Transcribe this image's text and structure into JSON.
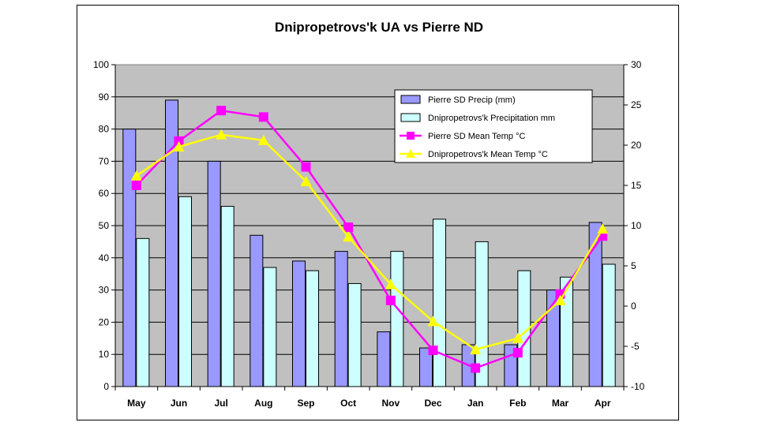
{
  "chart_data": {
    "type": "bar",
    "title": "Dnipropetrovs'k UA vs Pierre ND",
    "categories": [
      "May",
      "Jun",
      "Jul",
      "Aug",
      "Sep",
      "Oct",
      "Nov",
      "Dec",
      "Jan",
      "Feb",
      "Mar",
      "Apr"
    ],
    "y_left": {
      "min": 0,
      "max": 100,
      "step": 10
    },
    "y_right": {
      "min": -10,
      "max": 30,
      "step": 5
    },
    "legend_position": "top-right",
    "series": [
      {
        "name": "Pierre SD Precip (mm)",
        "type": "bar",
        "axis": "left",
        "color": "#9999FF",
        "values": [
          80,
          89,
          70,
          47,
          39,
          42,
          17,
          12,
          13,
          13,
          30,
          51
        ]
      },
      {
        "name": "Dnipropetrovs'k Precipitation mm",
        "type": "bar",
        "axis": "left",
        "color": "#CCFFFF",
        "values": [
          46,
          59,
          56,
          37,
          36,
          32,
          42,
          52,
          45,
          36,
          34,
          38
        ]
      },
      {
        "name": "Pierre SD Mean Temp °C",
        "type": "line",
        "axis": "right",
        "color": "#FF00FF",
        "marker": "square",
        "values": [
          15.0,
          20.5,
          24.3,
          23.5,
          17.3,
          9.8,
          0.7,
          -5.5,
          -7.7,
          -5.8,
          1.5,
          8.7
        ]
      },
      {
        "name": "Dnipropetrovs'k Mean Temp °C",
        "type": "line",
        "axis": "right",
        "color": "#FFFF00",
        "marker": "triangle",
        "values": [
          16.2,
          19.8,
          21.3,
          20.6,
          15.5,
          8.6,
          2.7,
          -1.9,
          -5.4,
          -4.0,
          0.7,
          9.6
        ]
      }
    ]
  }
}
